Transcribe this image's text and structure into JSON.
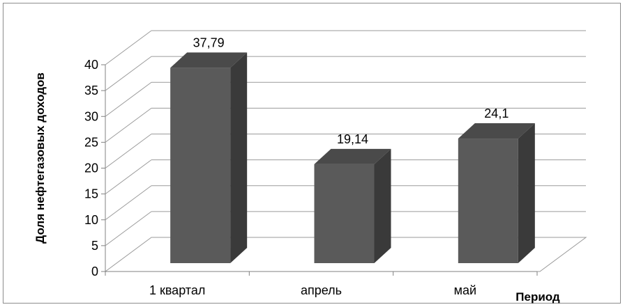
{
  "chart_data": {
    "type": "bar",
    "categories": [
      "1 квартал",
      "апрель",
      "май"
    ],
    "values": [
      37.79,
      19.14,
      24.1
    ],
    "data_labels": [
      "37,79",
      "19,14",
      "24,1"
    ],
    "ylabel": "Доля нефтегазовых доходов",
    "xlabel": "Период",
    "ylim": [
      0,
      40
    ],
    "yticks": [
      "0",
      "5",
      "10",
      "15",
      "20",
      "25",
      "30",
      "35",
      "40"
    ],
    "grid": true,
    "legend": "none",
    "three_d": true,
    "colors": {
      "bar_front": "#5a5a5a",
      "bar_side": "#3a3a3a",
      "bar_top": "#4a4a4a",
      "grid": "#9a9a9a",
      "axis": "#808080"
    }
  }
}
